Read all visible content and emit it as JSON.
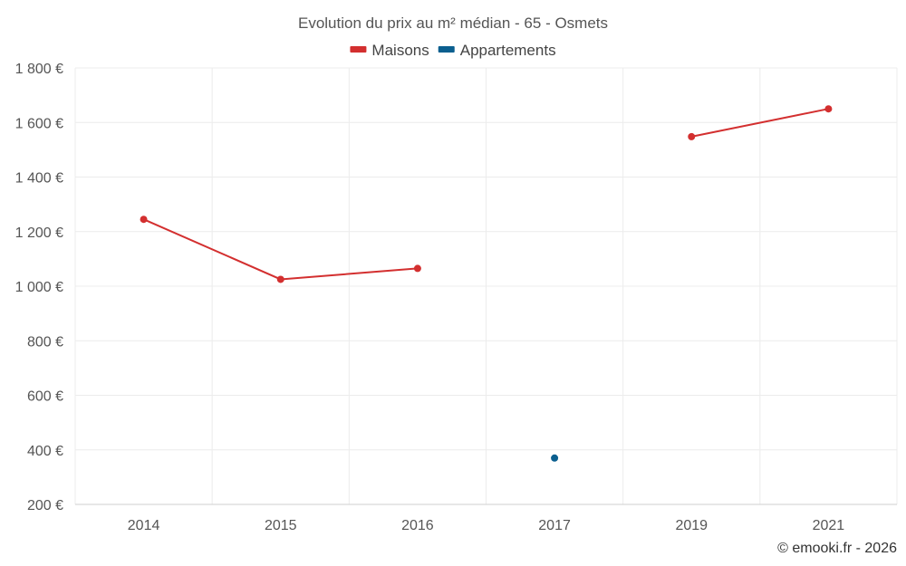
{
  "chart_data": {
    "type": "line",
    "title": "Evolution du prix au m² médian - 65 - Osmets",
    "categories": [
      "2014",
      "2015",
      "2016",
      "2017",
      "2019",
      "2021"
    ],
    "series": [
      {
        "name": "Maisons",
        "color": "#d32f2f",
        "values": [
          1245,
          1025,
          1065,
          null,
          1548,
          1650
        ]
      },
      {
        "name": "Appartements",
        "color": "#0b5f8f",
        "values": [
          null,
          null,
          null,
          370,
          null,
          null
        ]
      }
    ],
    "y_ticks": [
      "200 €",
      "400 €",
      "600 €",
      "800 €",
      "1 000 €",
      "1 200 €",
      "1 400 €",
      "1 600 €",
      "1 800 €"
    ],
    "ylim": [
      200,
      1800
    ],
    "legend_position": "top",
    "grid": true
  },
  "credit": "© emooki.fr - 2026"
}
